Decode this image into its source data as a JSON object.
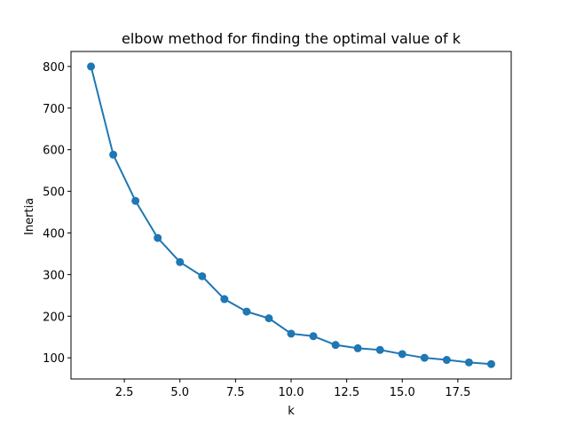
{
  "chart_data": {
    "type": "line",
    "title": "elbow method for finding the optimal value of k",
    "xlabel": "k",
    "ylabel": "Inertia",
    "xlim": [
      0.1,
      19.9
    ],
    "ylim": [
      49.2,
      836
    ],
    "xticks": [
      2.5,
      5.0,
      7.5,
      10.0,
      12.5,
      15.0,
      17.5
    ],
    "xtick_labels": [
      "2.5",
      "5.0",
      "7.5",
      "10.0",
      "12.5",
      "15.0",
      "17.5"
    ],
    "yticks": [
      100,
      200,
      300,
      400,
      500,
      600,
      700,
      800
    ],
    "ytick_labels": [
      "100",
      "200",
      "300",
      "400",
      "500",
      "600",
      "700",
      "800"
    ],
    "grid": false,
    "series": [
      {
        "color": "#1f77b4",
        "marker": "circle",
        "x": [
          1,
          2,
          3,
          4,
          5,
          6,
          7,
          8,
          9,
          10,
          11,
          12,
          13,
          14,
          15,
          16,
          17,
          18,
          19
        ],
        "y": [
          800,
          588,
          477,
          388,
          330,
          296,
          241,
          211,
          195,
          158,
          152,
          131,
          123,
          119,
          109,
          100,
          95,
          89,
          85
        ]
      }
    ]
  }
}
